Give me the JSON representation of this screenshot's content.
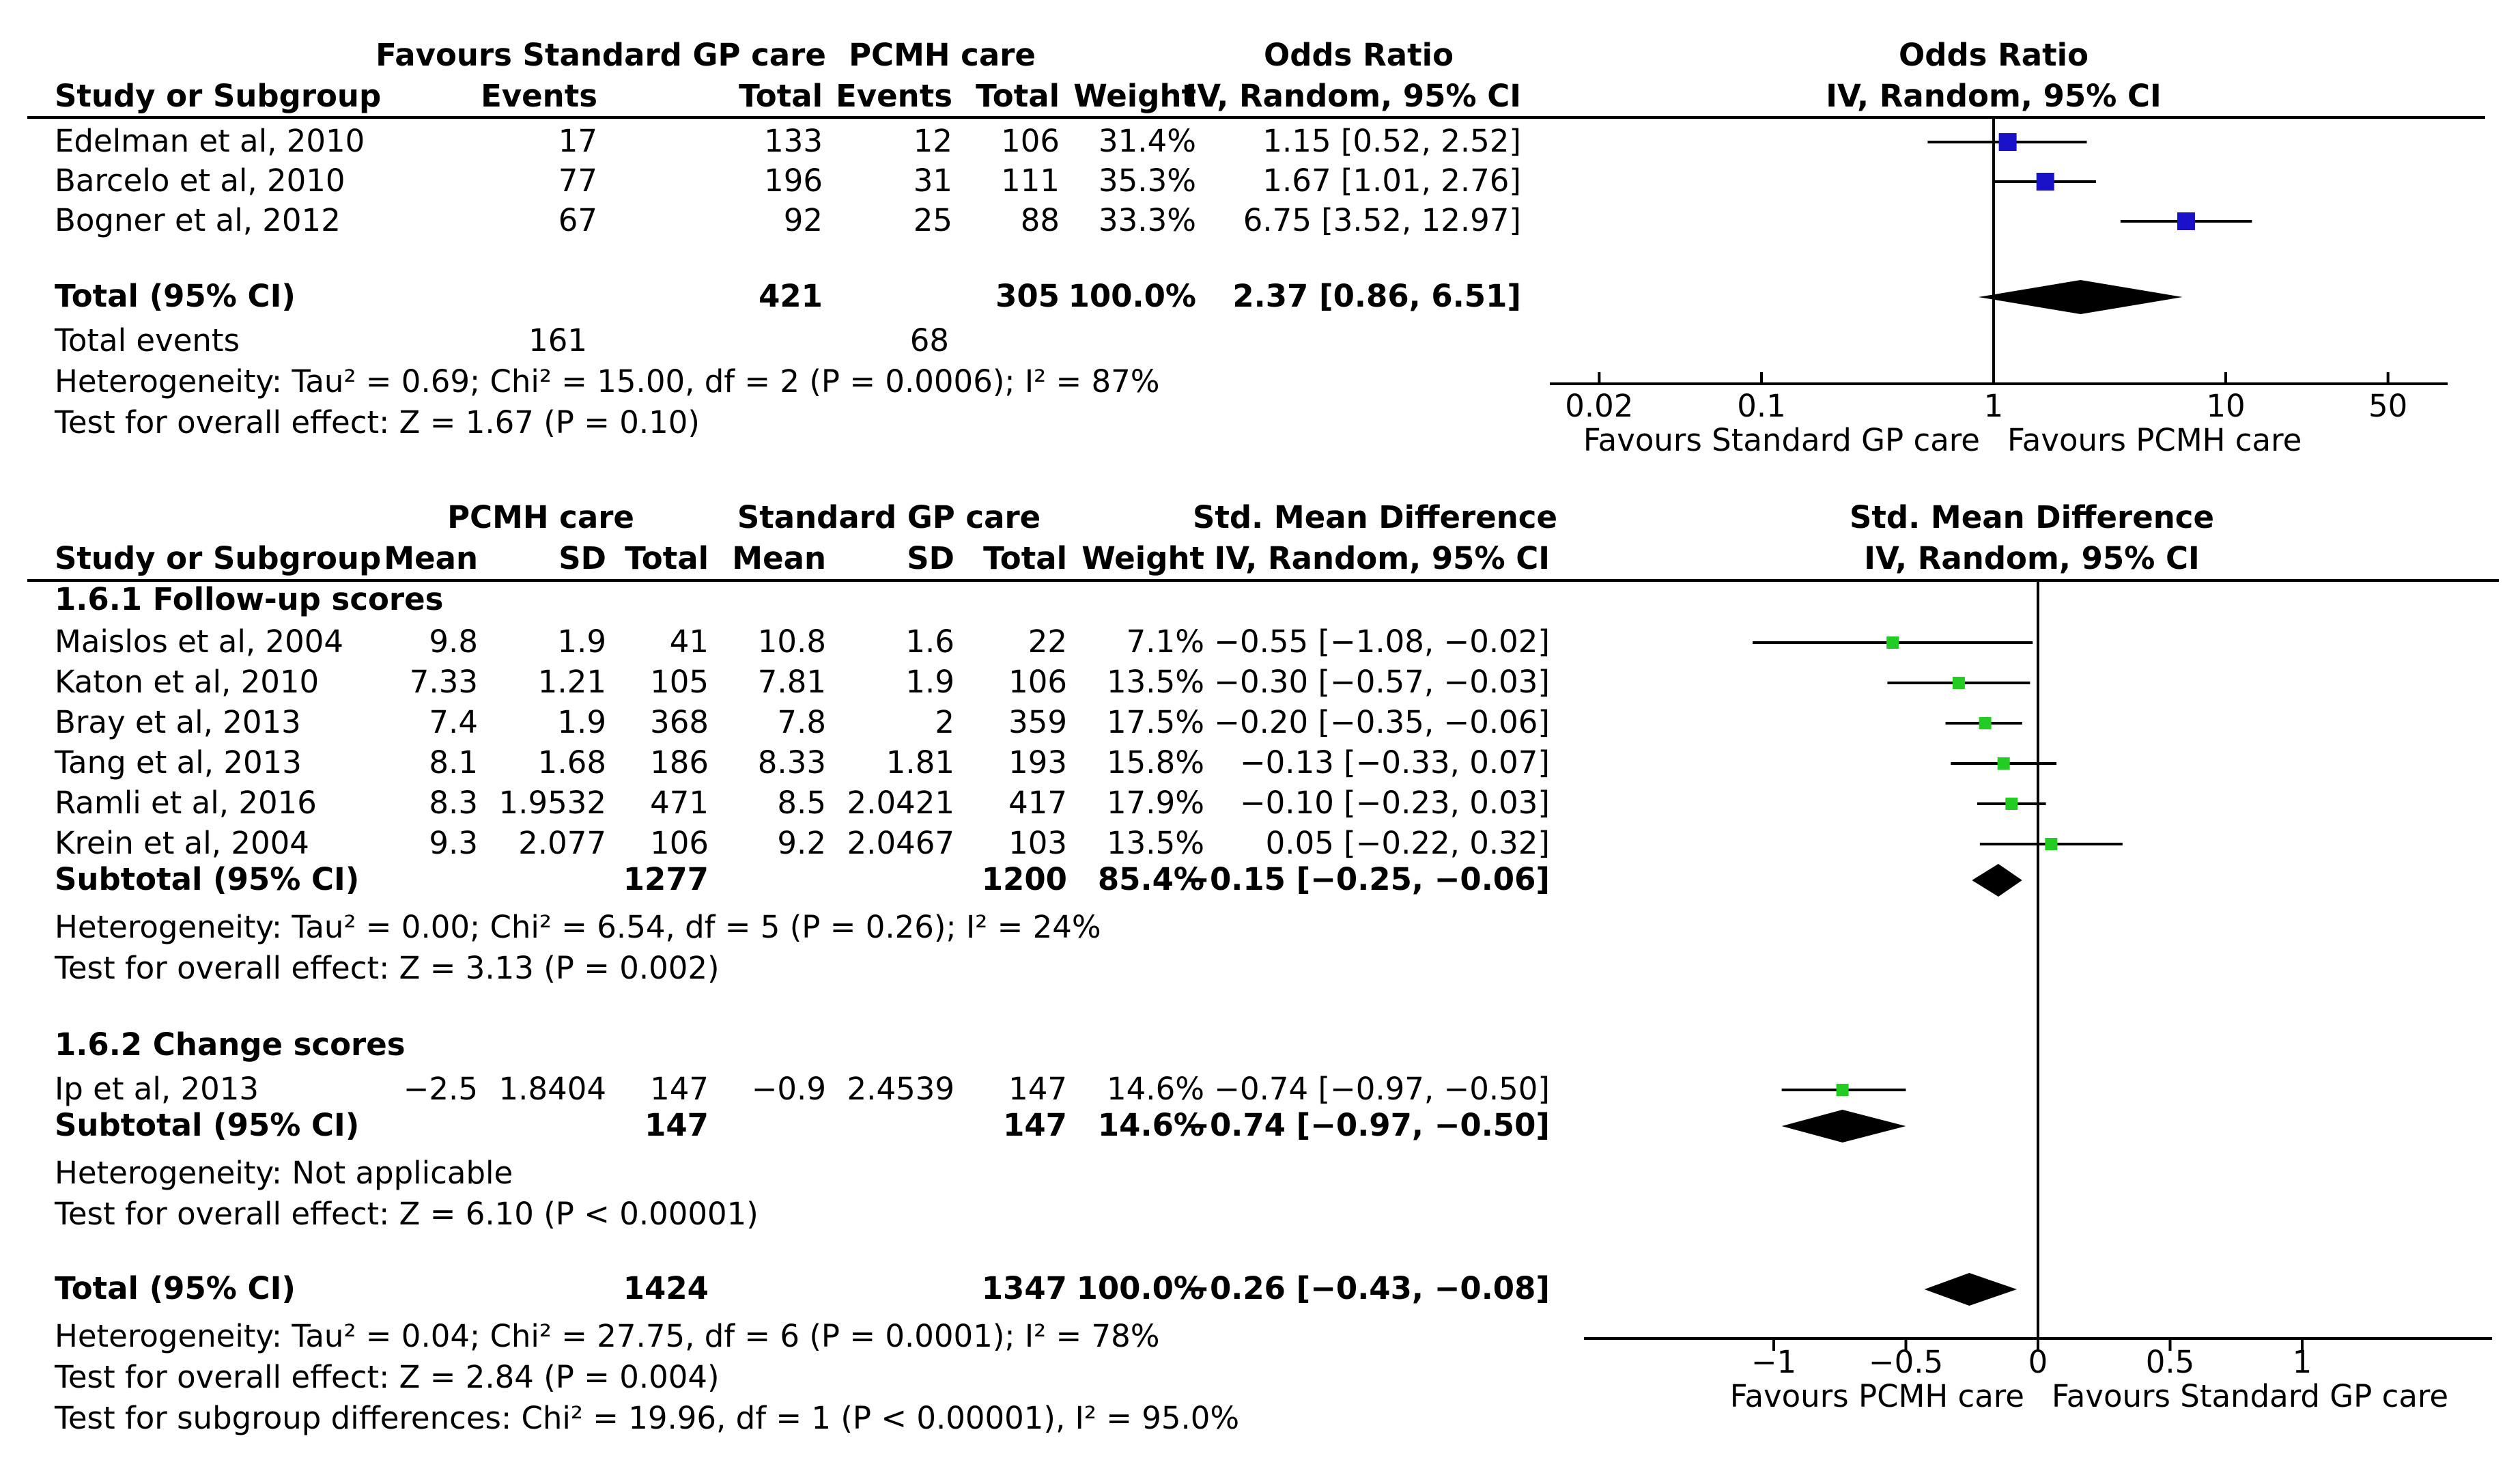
{
  "colors": {
    "or_marker": "#1a12c8",
    "smd_marker": "#22cc22",
    "line": "#000000"
  },
  "chart_data": [
    {
      "type": "forest",
      "scale": "log",
      "header": {
        "group1": "Favours Standard GP care",
        "group2": "PCMH care",
        "study": "Study or Subgroup",
        "events": "Events",
        "total": "Total",
        "weight": "Weight",
        "effect_title": "Odds Ratio",
        "effect_method": "IV, Random, 95% CI"
      },
      "studies": [
        {
          "name": "Edelman et al, 2010",
          "g1_events": "17",
          "g1_total": "133",
          "g2_events": "12",
          "g2_total": "106",
          "weight": "31.4%",
          "ci_text": "1.15 [0.52, 2.52]",
          "est": 1.15,
          "lo": 0.52,
          "hi": 2.52
        },
        {
          "name": "Barcelo et al, 2010",
          "g1_events": "77",
          "g1_total": "196",
          "g2_events": "31",
          "g2_total": "111",
          "weight": "35.3%",
          "ci_text": "1.67 [1.01, 2.76]",
          "est": 1.67,
          "lo": 1.01,
          "hi": 2.76
        },
        {
          "name": "Bogner et al, 2012",
          "g1_events": "67",
          "g1_total": "92",
          "g2_events": "25",
          "g2_total": "88",
          "weight": "33.3%",
          "ci_text": "6.75 [3.52, 12.97]",
          "est": 6.75,
          "lo": 3.52,
          "hi": 12.97
        }
      ],
      "total": {
        "label": "Total (95% CI)",
        "g1_total": "421",
        "g2_total": "305",
        "weight": "100.0%",
        "ci_text": "2.37 [0.86, 6.51]",
        "est": 2.37,
        "lo": 0.86,
        "hi": 6.51
      },
      "total_events": {
        "label": "Total events",
        "g1": "161",
        "g2": "68"
      },
      "heterogeneity": "Heterogeneity: Tau² = 0.69; Chi² = 15.00, df = 2 (P = 0.0006); I² = 87%",
      "overall_effect": "Test for overall effect: Z = 1.67 (P = 0.10)",
      "axis": {
        "ticks": [
          0.02,
          0.1,
          1,
          10,
          50
        ],
        "tick_labels": [
          "0.02",
          "0.1",
          "1",
          "10",
          "50"
        ],
        "favours_left": "Favours Standard GP care",
        "favours_right": "Favours PCMH care"
      }
    },
    {
      "type": "forest",
      "scale": "linear",
      "header": {
        "group1": "PCMH care",
        "group2": "Standard GP care",
        "study": "Study or Subgroup",
        "mean": "Mean",
        "sd": "SD",
        "total": "Total",
        "weight": "Weight",
        "effect_title": "Std. Mean Difference",
        "effect_method": "IV, Random, 95% CI"
      },
      "subgroups": [
        {
          "title": "1.6.1 Follow-up scores",
          "studies": [
            {
              "name": "Maislos et al, 2004",
              "m1": "9.8",
              "sd1": "1.9",
              "n1": "41",
              "m2": "10.8",
              "sd2": "1.6",
              "n2": "22",
              "weight": "7.1%",
              "ci_text": "−0.55 [−1.08, −0.02]",
              "est": -0.55,
              "lo": -1.08,
              "hi": -0.02
            },
            {
              "name": "Katon et al, 2010",
              "m1": "7.33",
              "sd1": "1.21",
              "n1": "105",
              "m2": "7.81",
              "sd2": "1.9",
              "n2": "106",
              "weight": "13.5%",
              "ci_text": "−0.30 [−0.57, −0.03]",
              "est": -0.3,
              "lo": -0.57,
              "hi": -0.03
            },
            {
              "name": "Bray et al, 2013",
              "m1": "7.4",
              "sd1": "1.9",
              "n1": "368",
              "m2": "7.8",
              "sd2": "2",
              "n2": "359",
              "weight": "17.5%",
              "ci_text": "−0.20 [−0.35, −0.06]",
              "est": -0.2,
              "lo": -0.35,
              "hi": -0.06
            },
            {
              "name": "Tang et al, 2013",
              "m1": "8.1",
              "sd1": "1.68",
              "n1": "186",
              "m2": "8.33",
              "sd2": "1.81",
              "n2": "193",
              "weight": "15.8%",
              "ci_text": "−0.13 [−0.33, 0.07]",
              "est": -0.13,
              "lo": -0.33,
              "hi": 0.07
            },
            {
              "name": "Ramli et al, 2016",
              "m1": "8.3",
              "sd1": "1.9532",
              "n1": "471",
              "m2": "8.5",
              "sd2": "2.0421",
              "n2": "417",
              "weight": "17.9%",
              "ci_text": "−0.10 [−0.23, 0.03]",
              "est": -0.1,
              "lo": -0.23,
              "hi": 0.03
            },
            {
              "name": "Krein et al, 2004",
              "m1": "9.3",
              "sd1": "2.077",
              "n1": "106",
              "m2": "9.2",
              "sd2": "2.0467",
              "n2": "103",
              "weight": "13.5%",
              "ci_text": "0.05 [−0.22, 0.32]",
              "est": 0.05,
              "lo": -0.22,
              "hi": 0.32
            }
          ],
          "subtotal": {
            "label": "Subtotal (95% CI)",
            "n1": "1277",
            "n2": "1200",
            "weight": "85.4%",
            "ci_text": "−0.15 [−0.25, −0.06]",
            "est": -0.15,
            "lo": -0.25,
            "hi": -0.06
          },
          "heterogeneity": "Heterogeneity: Tau² = 0.00; Chi² = 6.54, df = 5 (P = 0.26); I² = 24%",
          "overall_effect": "Test for overall effect: Z = 3.13 (P = 0.002)"
        },
        {
          "title": "1.6.2 Change scores",
          "studies": [
            {
              "name": "Ip et al, 2013",
              "m1": "−2.5",
              "sd1": "1.8404",
              "n1": "147",
              "m2": "−0.9",
              "sd2": "2.4539",
              "n2": "147",
              "weight": "14.6%",
              "ci_text": "−0.74 [−0.97, −0.50]",
              "est": -0.74,
              "lo": -0.97,
              "hi": -0.5
            }
          ],
          "subtotal": {
            "label": "Subtotal (95% CI)",
            "n1": "147",
            "n2": "147",
            "weight": "14.6%",
            "ci_text": "−0.74 [−0.97, −0.50]",
            "est": -0.74,
            "lo": -0.97,
            "hi": -0.5
          },
          "heterogeneity": "Heterogeneity: Not applicable",
          "overall_effect": "Test for overall effect: Z = 6.10 (P < 0.00001)"
        }
      ],
      "total": {
        "label": "Total (95% CI)",
        "n1": "1424",
        "n2": "1347",
        "weight": "100.0%",
        "ci_text": "−0.26 [−0.43, −0.08]",
        "est": -0.26,
        "lo": -0.43,
        "hi": -0.08
      },
      "heterogeneity": "Heterogeneity: Tau² = 0.04; Chi² = 27.75, df = 6 (P = 0.0001); I² = 78%",
      "overall_effect": "Test for overall effect: Z = 2.84 (P = 0.004)",
      "subgroup_differences": "Test for subgroup differences: Chi² = 19.96, df = 1 (P < 0.00001), I² = 95.0%",
      "axis": {
        "ticks": [
          -1,
          -0.5,
          0,
          0.5,
          1
        ],
        "tick_labels": [
          "−1",
          "−0.5",
          "0",
          "0.5",
          "1"
        ],
        "favours_left": "Favours PCMH care",
        "favours_right": "Favours Standard GP care"
      }
    }
  ]
}
